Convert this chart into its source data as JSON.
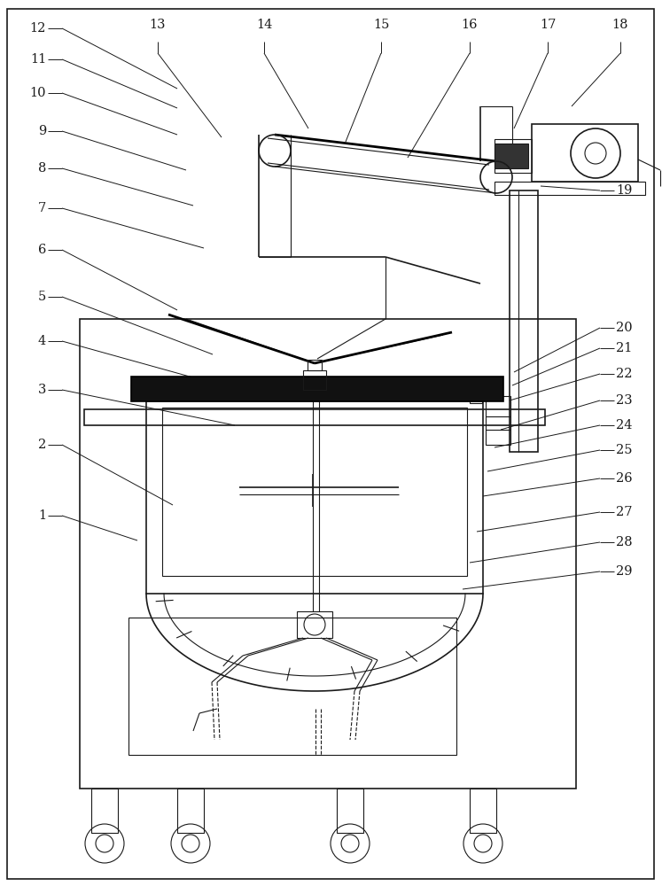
{
  "background_color": "#ffffff",
  "lc": "#1a1a1a",
  "label_fontsize": 10.5
}
